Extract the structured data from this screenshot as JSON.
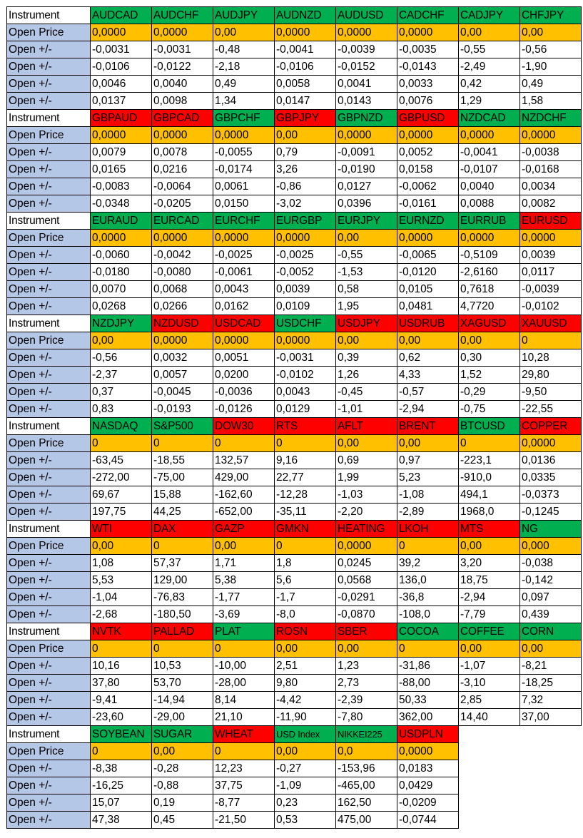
{
  "colors": {
    "label_bg": "#b4c7e7",
    "open_price_bg": "#ffc000",
    "up_bg": "#00b050",
    "down_bg": "#ff0000"
  },
  "labels": {
    "instrument": "Instrument",
    "open_price": "Open Price",
    "open_change": "Open +/-"
  },
  "blocks": [
    {
      "instruments": [
        {
          "name": "AUDCAD",
          "color": "green"
        },
        {
          "name": "AUDCHF",
          "color": "green"
        },
        {
          "name": "AUDJPY",
          "color": "green"
        },
        {
          "name": "AUDNZD",
          "color": "green"
        },
        {
          "name": "AUDUSD",
          "color": "green"
        },
        {
          "name": "CADCHF",
          "color": "green"
        },
        {
          "name": "CADJPY",
          "color": "green"
        },
        {
          "name": "CHFJPY",
          "color": "green"
        }
      ],
      "open_price": [
        "0,0000",
        "0,0000",
        "0,00",
        "0,0000",
        "0,0000",
        "0,0000",
        "0,00",
        "0,00"
      ],
      "rows": [
        [
          "-0,0031",
          "-0,0031",
          "-0,48",
          "-0,0041",
          "-0,0039",
          "-0,0035",
          "-0,55",
          "-0,56"
        ],
        [
          "-0,0106",
          "-0,0122",
          "-2,18",
          "-0,0106",
          "-0,0152",
          "-0,0143",
          "-2,49",
          "-1,90"
        ],
        [
          "0,0046",
          "0,0040",
          "0,49",
          "0,0058",
          "0,0041",
          "0,0033",
          "0,42",
          "0,49"
        ],
        [
          "0,0137",
          "0,0098",
          "1,34",
          "0,0147",
          "0,0143",
          "0,0076",
          "1,29",
          "1,58"
        ]
      ]
    },
    {
      "instruments": [
        {
          "name": "GBPAUD",
          "color": "red"
        },
        {
          "name": "GBPCAD",
          "color": "red"
        },
        {
          "name": "GBPCHF",
          "color": "green"
        },
        {
          "name": "GBPJPY",
          "color": "red"
        },
        {
          "name": "GBPNZD",
          "color": "green"
        },
        {
          "name": "GBPUSD",
          "color": "red"
        },
        {
          "name": "NZDCAD",
          "color": "green"
        },
        {
          "name": "NZDCHF",
          "color": "green"
        }
      ],
      "open_price": [
        "0,0000",
        "0,0000",
        "0,0000",
        "0,00",
        "0,0000",
        "0,0000",
        "0,0000",
        "0,0000"
      ],
      "rows": [
        [
          "0,0079",
          "0,0078",
          "-0,0055",
          "0,79",
          "-0,0091",
          "0,0052",
          "-0,0041",
          "-0,0038"
        ],
        [
          "0,0165",
          "0,0216",
          "-0,0174",
          "3,26",
          "-0,0190",
          "0,0158",
          "-0,0107",
          "-0,0168"
        ],
        [
          "-0,0083",
          "-0,0064",
          "0,0061",
          "-0,86",
          "0,0127",
          "-0,0062",
          "0,0040",
          "0,0034"
        ],
        [
          "-0,0348",
          "-0,0205",
          "0,0150",
          "-3,02",
          "0,0396",
          "-0,0161",
          "0,0088",
          "0,0082"
        ]
      ]
    },
    {
      "instruments": [
        {
          "name": "EURAUD",
          "color": "green"
        },
        {
          "name": "EURCAD",
          "color": "green"
        },
        {
          "name": "EURCHF",
          "color": "green"
        },
        {
          "name": "EURGBP",
          "color": "green"
        },
        {
          "name": "EURJPY",
          "color": "green"
        },
        {
          "name": "EURNZD",
          "color": "green"
        },
        {
          "name": "EURRUB",
          "color": "green"
        },
        {
          "name": "EURUSD",
          "color": "red"
        }
      ],
      "open_price": [
        "0,0000",
        "0,0000",
        "0,0000",
        "0,0000",
        "0,00",
        "0,0000",
        "0,0000",
        "0,0000"
      ],
      "rows": [
        [
          "-0,0060",
          "-0,0042",
          "-0,0025",
          "-0,0025",
          "-0,55",
          "-0,0065",
          "-0,5109",
          "0,0039"
        ],
        [
          "-0,0180",
          "-0,0080",
          "-0,0061",
          "-0,0052",
          "-1,53",
          "-0,0120",
          "-2,6160",
          "0,0117"
        ],
        [
          "0,0070",
          "0,0068",
          "0,0043",
          "0,0039",
          "0,58",
          "0,0105",
          "0,7618",
          "-0,0039"
        ],
        [
          "0,0268",
          "0,0266",
          "0,0162",
          "0,0109",
          "1,95",
          "0,0481",
          "4,7720",
          "-0,0102"
        ]
      ]
    },
    {
      "instruments": [
        {
          "name": "NZDJPY",
          "color": "green"
        },
        {
          "name": "NZDUSD",
          "color": "red"
        },
        {
          "name": "USDCAD",
          "color": "red"
        },
        {
          "name": "USDCHF",
          "color": "green"
        },
        {
          "name": "USDJPY",
          "color": "red"
        },
        {
          "name": "USDRUB",
          "color": "red"
        },
        {
          "name": "XAGUSD",
          "color": "red"
        },
        {
          "name": "XAUUSD",
          "color": "red"
        }
      ],
      "open_price": [
        "0,00",
        "0,0000",
        "0,0000",
        "0,0000",
        "0,00",
        "0,00",
        "0,00",
        "0"
      ],
      "rows": [
        [
          "-0,56",
          "0,0032",
          "0,0051",
          "-0,0031",
          "0,39",
          "0,62",
          "0,30",
          "10,28"
        ],
        [
          "-2,37",
          "0,0057",
          "0,0200",
          "-0,0102",
          "1,26",
          "4,33",
          "1,52",
          "29,80"
        ],
        [
          "0,37",
          "-0,0045",
          "-0,0036",
          "0,0043",
          "-0,45",
          "-0,57",
          "-0,29",
          "-9,50"
        ],
        [
          "0,83",
          "-0,0193",
          "-0,0126",
          "0,0129",
          "-1,01",
          "-2,94",
          "-0,75",
          "-22,55"
        ]
      ]
    },
    {
      "instruments": [
        {
          "name": "NASDAQ",
          "color": "green"
        },
        {
          "name": "S&P500",
          "color": "green"
        },
        {
          "name": "DOW30",
          "color": "red"
        },
        {
          "name": "RTS",
          "color": "red"
        },
        {
          "name": "AFLT",
          "color": "red"
        },
        {
          "name": "BRENT",
          "color": "red"
        },
        {
          "name": "BTCUSD",
          "color": "green"
        },
        {
          "name": "COPPER",
          "color": "red"
        }
      ],
      "open_price": [
        "0",
        "0",
        "0",
        "0",
        "0,00",
        "0,00",
        "0",
        "0,0000"
      ],
      "rows": [
        [
          "-63,45",
          "-18,55",
          "132,57",
          "9,16",
          "0,69",
          "0,97",
          "-223,1",
          "0,0136"
        ],
        [
          "-272,00",
          "-75,00",
          "429,00",
          "22,77",
          "1,99",
          "5,23",
          "-910,0",
          "0,0335"
        ],
        [
          "69,67",
          "15,88",
          "-162,60",
          "-12,28",
          "-1,03",
          "-1,08",
          "494,1",
          "-0,0373"
        ],
        [
          "197,75",
          "44,25",
          "-652,00",
          "-35,11",
          "-2,20",
          "-2,89",
          "1968,0",
          "-0,1245"
        ]
      ]
    },
    {
      "instruments": [
        {
          "name": "WTI",
          "color": "red"
        },
        {
          "name": "DAX",
          "color": "red"
        },
        {
          "name": "GAZP",
          "color": "red"
        },
        {
          "name": "GMKN",
          "color": "red"
        },
        {
          "name": "HEATING",
          "color": "red"
        },
        {
          "name": "LKOH",
          "color": "red"
        },
        {
          "name": "MTS",
          "color": "red"
        },
        {
          "name": "NG",
          "color": "green"
        }
      ],
      "open_price": [
        "0,00",
        "0",
        "0,00",
        "0",
        "0,0000",
        "0",
        "0,00",
        "0,000"
      ],
      "rows": [
        [
          "1,08",
          "57,37",
          "1,71",
          "1,8",
          "0,0245",
          "39,2",
          "3,20",
          "-0,038"
        ],
        [
          "5,53",
          "129,00",
          "5,38",
          "5,6",
          "0,0568",
          "136,0",
          "18,75",
          "-0,142"
        ],
        [
          "-1,04",
          "-76,83",
          "-1,77",
          "-1,7",
          "-0,0291",
          "-36,8",
          "-2,94",
          "0,097"
        ],
        [
          "-2,68",
          "-180,50",
          "-3,69",
          "-8,0",
          "-0,0870",
          "-108,0",
          "-7,79",
          "0,439"
        ]
      ]
    },
    {
      "instruments": [
        {
          "name": "NVTK",
          "color": "red"
        },
        {
          "name": "PALLAD",
          "color": "red"
        },
        {
          "name": "PLAT",
          "color": "green"
        },
        {
          "name": "ROSN",
          "color": "red"
        },
        {
          "name": "SBER",
          "color": "red"
        },
        {
          "name": "COCOA",
          "color": "green"
        },
        {
          "name": "COFFEE",
          "color": "green"
        },
        {
          "name": "CORN",
          "color": "green"
        }
      ],
      "open_price": [
        "0",
        "0",
        "0",
        "0,00",
        "0,00",
        "0",
        "0,00",
        "0,00"
      ],
      "rows": [
        [
          "10,16",
          "10,53",
          "-10,00",
          "2,51",
          "1,23",
          "-31,86",
          "-1,07",
          "-8,21"
        ],
        [
          "37,80",
          "53,70",
          "-28,00",
          "9,80",
          "2,73",
          "-88,00",
          "-3,10",
          "-18,25"
        ],
        [
          "-9,41",
          "-14,94",
          "8,14",
          "-4,42",
          "-2,39",
          "50,33",
          "2,85",
          "7,32"
        ],
        [
          "-23,60",
          "-29,00",
          "21,10",
          "-11,90",
          "-7,80",
          "362,00",
          "14,40",
          "37,00"
        ]
      ]
    },
    {
      "instruments": [
        {
          "name": "SOYBEAN",
          "color": "green"
        },
        {
          "name": "SUGAR",
          "color": "green"
        },
        {
          "name": "WHEAT",
          "color": "red"
        },
        {
          "name": "USD Index",
          "color": "green"
        },
        {
          "name": "NIKKEI225",
          "color": "green"
        },
        {
          "name": "USDPLN",
          "color": "red"
        }
      ],
      "open_price": [
        "0",
        "0,00",
        "0",
        "0,00",
        "0,0",
        "0,0000"
      ],
      "rows": [
        [
          "-8,38",
          "-0,28",
          "12,23",
          "-0,27",
          "-153,96",
          "0,0183"
        ],
        [
          "-16,25",
          "-0,88",
          "37,75",
          "-1,09",
          "-465,00",
          "0,0429"
        ],
        [
          "15,07",
          "0,19",
          "-8,77",
          "0,23",
          "162,50",
          "-0,0209"
        ],
        [
          "47,38",
          "0,45",
          "-21,50",
          "0,53",
          "475,00",
          "-0,0744"
        ]
      ]
    }
  ]
}
